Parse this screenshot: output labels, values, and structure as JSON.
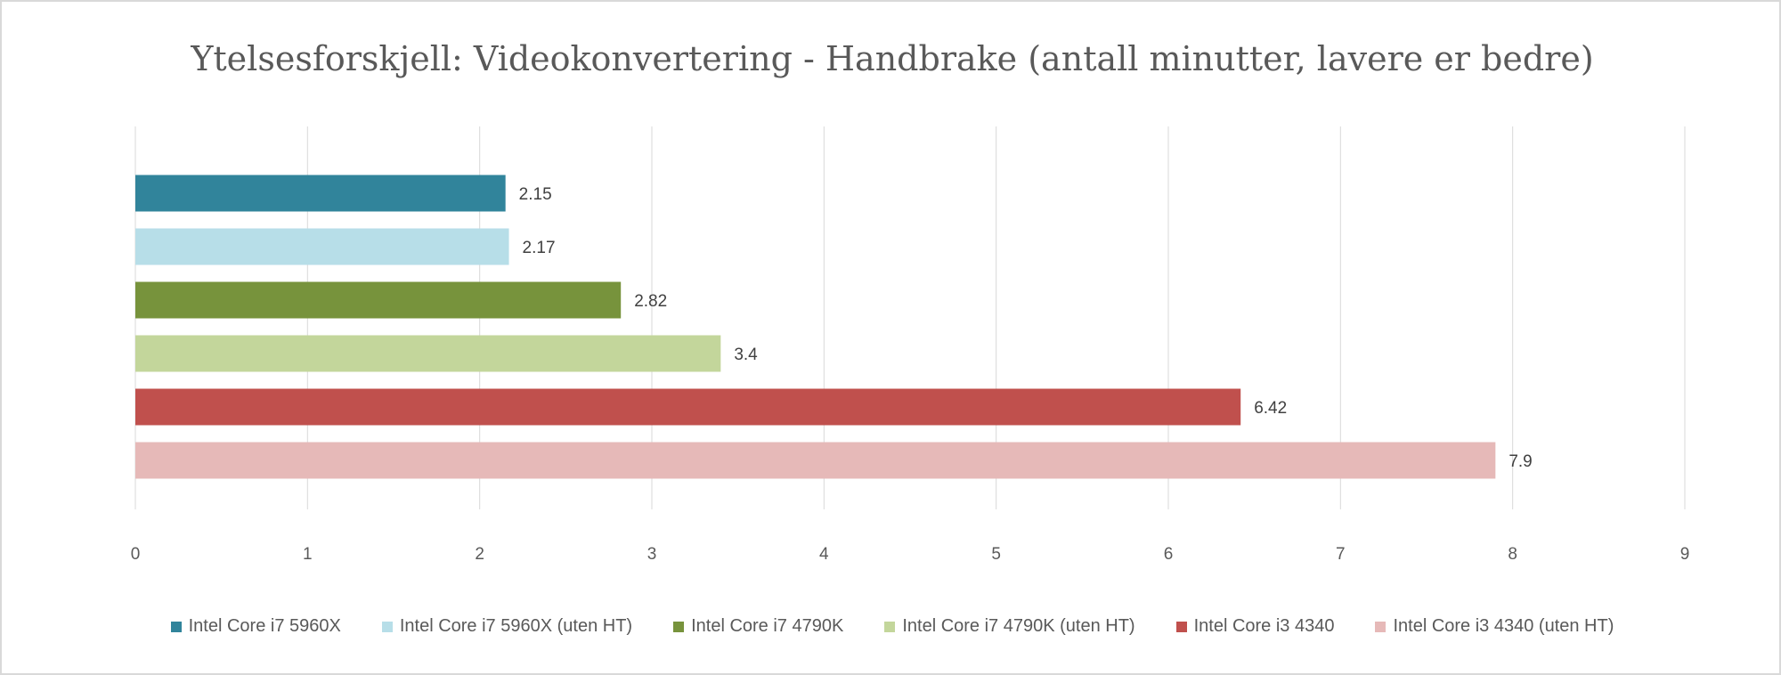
{
  "chart_data": {
    "type": "bar",
    "orientation": "horizontal",
    "title": "Ytelsesforskjell: Videokonvertering - Handbrake (antall minutter, lavere er bedre)",
    "xlim": [
      0,
      9
    ],
    "xticks": [
      0,
      1,
      2,
      3,
      4,
      5,
      6,
      7,
      8,
      9
    ],
    "grid": "vertical",
    "legend_position": "bottom",
    "series": [
      {
        "name": "Intel Core i7 5960X",
        "value": 2.15,
        "label": "2.15",
        "color": "#31849b"
      },
      {
        "name": "Intel Core i7 5960X (uten HT)",
        "value": 2.17,
        "label": "2.17",
        "color": "#b7dee8"
      },
      {
        "name": "Intel Core i7 4790K",
        "value": 2.82,
        "label": "2.82",
        "color": "#77933c"
      },
      {
        "name": "Intel Core i7 4790K (uten HT)",
        "value": 3.4,
        "label": "3.4",
        "color": "#c3d69b"
      },
      {
        "name": "Intel Core i3 4340",
        "value": 6.42,
        "label": "6.42",
        "color": "#c0504d"
      },
      {
        "name": "Intel Core i3 4340 (uten HT)",
        "value": 7.9,
        "label": "7.9",
        "color": "#e6b9b8"
      }
    ]
  }
}
